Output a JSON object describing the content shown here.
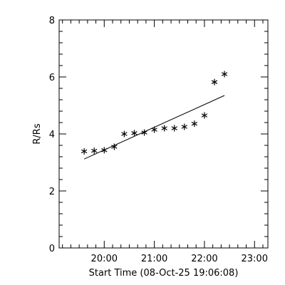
{
  "chart_data": {
    "type": "scatter",
    "title": "",
    "xlabel": "Start Time (08-Oct-25 19:06:08)",
    "ylabel": "R/Rs",
    "x_unit": "time of day (hours:minutes)",
    "xlim": [
      "19:06",
      "23:16"
    ],
    "ylim": [
      0,
      8
    ],
    "x_ticks": [
      "20:00",
      "21:00",
      "22:00",
      "23:00"
    ],
    "y_ticks": [
      "0",
      "2",
      "4",
      "6",
      "8"
    ],
    "grid": false,
    "marker": "asterisk",
    "series": [
      {
        "points": [
          {
            "x": "19:36",
            "y": 3.39
          },
          {
            "x": "19:48",
            "y": 3.41
          },
          {
            "x": "20:00",
            "y": 3.43
          },
          {
            "x": "20:12",
            "y": 3.55
          },
          {
            "x": "20:24",
            "y": 4.0
          },
          {
            "x": "20:36",
            "y": 4.03
          },
          {
            "x": "20:48",
            "y": 4.05
          },
          {
            "x": "21:00",
            "y": 4.15
          },
          {
            "x": "21:12",
            "y": 4.2
          },
          {
            "x": "21:24",
            "y": 4.2
          },
          {
            "x": "21:36",
            "y": 4.25
          },
          {
            "x": "21:48",
            "y": 4.36
          },
          {
            "x": "22:00",
            "y": 4.65
          },
          {
            "x": "22:12",
            "y": 5.82
          },
          {
            "x": "22:24",
            "y": 6.1
          }
        ]
      }
    ],
    "fit_line": {
      "start": {
        "x": "19:36",
        "y": 3.12
      },
      "end": {
        "x": "22:24",
        "y": 5.35
      }
    }
  }
}
